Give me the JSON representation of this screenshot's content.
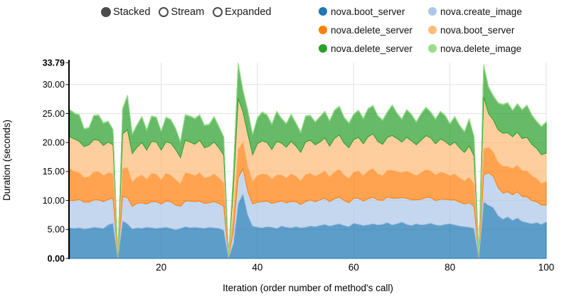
{
  "controls": {
    "radios": [
      {
        "label": "Stacked",
        "selected": true
      },
      {
        "label": "Stream",
        "selected": false
      },
      {
        "label": "Expanded",
        "selected": false
      }
    ]
  },
  "legend": {
    "items": [
      {
        "label": "nova.boot_server",
        "color": "#1f77b4"
      },
      {
        "label": "nova.create_image",
        "color": "#aec7e8"
      },
      {
        "label": "nova.delete_server",
        "color": "#ff7f0e"
      },
      {
        "label": "nova.boot_server",
        "color": "#ffbb78"
      },
      {
        "label": "nova.delete_server",
        "color": "#2ca02c"
      },
      {
        "label": "nova.delete_image",
        "color": "#98df8a"
      }
    ]
  },
  "chart_data": {
    "type": "area",
    "stacked": true,
    "xlabel": "Iteration (order number of method's call)",
    "ylabel": "Duration (seconds)",
    "xlim": [
      1,
      100
    ],
    "ylim": [
      0,
      33.79
    ],
    "grid": true,
    "legend_position": "top-right",
    "x_ticks": [
      {
        "value": 20,
        "label": "20"
      },
      {
        "value": 40,
        "label": "40"
      },
      {
        "value": 60,
        "label": "60"
      },
      {
        "value": 80,
        "label": "80"
      },
      {
        "value": 100,
        "label": "100"
      }
    ],
    "y_ticks": [
      {
        "value": 0,
        "label": "0.00",
        "bold": true
      },
      {
        "value": 5,
        "label": "5.00",
        "bold": false
      },
      {
        "value": 10,
        "label": "10.00",
        "bold": false
      },
      {
        "value": 15,
        "label": "15.00",
        "bold": false
      },
      {
        "value": 20,
        "label": "20.00",
        "bold": false
      },
      {
        "value": 25,
        "label": "25.00",
        "bold": false
      },
      {
        "value": 30,
        "label": "30.00",
        "bold": false
      },
      {
        "value": 33.79,
        "label": "33.79",
        "bold": true
      }
    ],
    "fill_opacity": 0.72,
    "series": [
      {
        "name": "nova.boot_server",
        "color": "#1f77b4",
        "values": [
          5.3,
          5.2,
          5.3,
          5.1,
          5.2,
          5.4,
          5.3,
          5.2,
          5.8,
          6.1,
          0.1,
          6.5,
          6.0,
          5.1,
          5.3,
          5.2,
          5.4,
          5.3,
          5.2,
          5.3,
          5.4,
          5.2,
          5.0,
          5.2,
          5.5,
          5.3,
          5.4,
          5.3,
          5.2,
          5.4,
          5.3,
          5.2,
          4.9,
          0.1,
          2.6,
          9.5,
          11.2,
          7.5,
          5.6,
          5.4,
          5.3,
          5.5,
          5.4,
          5.2,
          5.6,
          5.4,
          5.3,
          5.5,
          5.3,
          5.4,
          5.6,
          5.5,
          5.7,
          5.9,
          5.6,
          5.8,
          6.0,
          5.7,
          5.5,
          6.1,
          5.9,
          5.7,
          5.8,
          6.0,
          5.8,
          5.9,
          6.2,
          5.8,
          6.0,
          6.3,
          5.9,
          5.7,
          6.0,
          5.8,
          5.9,
          6.1,
          5.8,
          5.7,
          5.9,
          6.0,
          5.8,
          5.6,
          5.5,
          5.4,
          5.2,
          0.1,
          9.8,
          9.2,
          8.8,
          7.4,
          6.8,
          7.2,
          6.6,
          7.0,
          6.4,
          6.2,
          6.0,
          6.2,
          5.9,
          6.3
        ]
      },
      {
        "name": "nova.create_image",
        "color": "#aec7e8",
        "values": [
          4.7,
          4.8,
          4.9,
          4.6,
          4.5,
          4.7,
          4.8,
          4.6,
          4.4,
          4.3,
          0.1,
          4.2,
          4.5,
          3.9,
          4.2,
          4.4,
          4.0,
          4.5,
          4.6,
          4.1,
          4.5,
          4.6,
          4.2,
          3.8,
          4.4,
          4.6,
          4.4,
          4.6,
          4.3,
          4.2,
          4.5,
          4.3,
          4.1,
          0.1,
          2.2,
          4.4,
          4.3,
          4.1,
          3.8,
          4.3,
          4.5,
          4.4,
          4.1,
          4.5,
          4.3,
          4.2,
          4.5,
          4.3,
          4.0,
          4.4,
          4.5,
          4.3,
          4.4,
          4.5,
          4.2,
          4.5,
          4.6,
          4.3,
          4.1,
          4.3,
          4.5,
          4.2,
          4.5,
          4.6,
          4.3,
          4.1,
          4.4,
          4.6,
          4.4,
          4.2,
          4.5,
          4.4,
          4.1,
          4.4,
          4.6,
          4.4,
          4.2,
          4.5,
          4.3,
          4.1,
          4.3,
          4.1,
          3.9,
          4.2,
          3.8,
          0.1,
          4.6,
          5.6,
          5.4,
          4.8,
          4.5,
          4.3,
          4.4,
          4.5,
          4.3,
          4.4,
          4.0,
          3.6,
          3.3,
          2.9
        ]
      },
      {
        "name": "nova.delete_server",
        "color": "#ff7f0e",
        "values": [
          5.5,
          5.0,
          4.6,
          4.3,
          4.4,
          4.8,
          4.9,
          4.5,
          4.6,
          4.2,
          0.1,
          4.8,
          5.2,
          4.2,
          4.5,
          4.8,
          4.3,
          4.9,
          4.7,
          4.2,
          4.8,
          4.6,
          4.4,
          3.9,
          4.9,
          4.7,
          4.5,
          4.9,
          4.4,
          4.5,
          4.8,
          4.4,
          4.0,
          0.1,
          2.4,
          4.9,
          4.6,
          4.3,
          3.9,
          4.6,
          4.8,
          4.6,
          4.2,
          4.7,
          4.5,
          4.3,
          4.8,
          4.4,
          4.1,
          4.7,
          4.6,
          4.4,
          4.5,
          4.7,
          4.3,
          4.6,
          4.8,
          4.4,
          4.2,
          4.5,
          4.7,
          4.4,
          4.8,
          4.9,
          4.5,
          4.3,
          4.6,
          4.8,
          4.6,
          4.3,
          4.7,
          4.6,
          4.2,
          4.6,
          4.8,
          4.6,
          4.4,
          4.7,
          4.5,
          4.2,
          4.5,
          4.2,
          4.0,
          4.4,
          3.9,
          0.1,
          4.5,
          4.4,
          4.2,
          4.4,
          4.6,
          4.4,
          4.5,
          4.6,
          4.4,
          4.5,
          4.3,
          4.0,
          3.7,
          4.1
        ]
      },
      {
        "name": "nova.boot_server",
        "color": "#ffbb78",
        "values": [
          5.5,
          5.6,
          5.4,
          5.3,
          5.5,
          5.6,
          5.4,
          5.2,
          5.3,
          5.0,
          0.25,
          6.0,
          6.5,
          4.9,
          5.2,
          5.6,
          5.0,
          5.5,
          5.6,
          5.1,
          5.4,
          5.5,
          5.2,
          4.5,
          5.6,
          5.5,
          5.4,
          5.6,
          5.2,
          5.3,
          5.5,
          5.2,
          4.8,
          0.25,
          5.0,
          8.8,
          5.2,
          5.6,
          4.6,
          5.5,
          5.7,
          5.5,
          5.1,
          5.8,
          5.5,
          5.3,
          5.6,
          5.2,
          4.9,
          5.6,
          5.7,
          5.4,
          5.5,
          5.7,
          5.3,
          5.8,
          5.9,
          5.5,
          5.3,
          5.6,
          5.8,
          5.5,
          5.9,
          6.0,
          5.6,
          5.4,
          5.7,
          6.0,
          5.7,
          5.3,
          5.8,
          5.6,
          5.3,
          5.6,
          5.9,
          5.7,
          5.4,
          5.7,
          5.5,
          5.2,
          5.5,
          5.2,
          4.9,
          5.4,
          4.8,
          0.25,
          9.0,
          5.8,
          5.5,
          5.6,
          5.7,
          5.8,
          5.5,
          5.7,
          5.6,
          5.8,
          5.4,
          5.2,
          5.0,
          4.9
        ]
      },
      {
        "name": "nova.delete_server",
        "color": "#2ca02c",
        "values": [
          4.6,
          4.4,
          4.5,
          3.0,
          2.9,
          4.1,
          4.3,
          3.8,
          3.5,
          2.6,
          0.05,
          4.3,
          5.8,
          3.3,
          3.8,
          4.4,
          3.4,
          4.3,
          4.2,
          3.2,
          4.2,
          4.0,
          3.6,
          2.7,
          4.3,
          4.4,
          4.4,
          4.3,
          3.8,
          3.7,
          4.3,
          3.6,
          3.1,
          0.05,
          2.6,
          5.8,
          3.6,
          4.0,
          3.4,
          4.4,
          4.9,
          4.7,
          4.3,
          5.1,
          4.2,
          4.0,
          4.6,
          3.9,
          3.4,
          4.4,
          4.2,
          3.9,
          4.3,
          4.5,
          4.3,
          4.8,
          4.9,
          4.4,
          4.2,
          4.3,
          4.6,
          4.3,
          4.8,
          4.8,
          4.4,
          4.1,
          4.3,
          5.2,
          4.3,
          3.9,
          4.7,
          4.5,
          3.9,
          4.5,
          4.8,
          4.4,
          4.2,
          4.7,
          4.4,
          3.7,
          4.3,
          3.8,
          3.5,
          4.6,
          3.3,
          0.05,
          5.3,
          4.5,
          4.1,
          4.6,
          4.9,
          5.1,
          4.5,
          4.8,
          4.9,
          5.5,
          5.0,
          4.6,
          4.8,
          5.3
        ]
      },
      {
        "name": "nova.delete_image",
        "color": "#98df8a",
        "values": [
          0.12,
          0.12,
          0.12,
          0.12,
          0.12,
          0.12,
          0.12,
          0.12,
          0.12,
          0.12,
          0.03,
          0.15,
          0.2,
          0.12,
          0.12,
          0.12,
          0.12,
          0.12,
          0.12,
          0.12,
          0.12,
          0.12,
          0.12,
          0.12,
          0.12,
          0.12,
          0.12,
          0.12,
          0.12,
          0.12,
          0.12,
          0.12,
          0.12,
          0.03,
          0.1,
          0.4,
          0.15,
          0.12,
          0.12,
          0.12,
          0.12,
          0.12,
          0.12,
          0.12,
          0.12,
          0.12,
          0.12,
          0.12,
          0.12,
          0.12,
          0.12,
          0.12,
          0.12,
          0.12,
          0.12,
          0.12,
          0.12,
          0.12,
          0.12,
          0.12,
          0.12,
          0.12,
          0.12,
          0.12,
          0.12,
          0.12,
          0.12,
          0.12,
          0.12,
          0.12,
          0.12,
          0.12,
          0.12,
          0.12,
          0.12,
          0.12,
          0.12,
          0.12,
          0.12,
          0.12,
          0.12,
          0.12,
          0.12,
          0.12,
          0.12,
          0.03,
          0.35,
          0.2,
          0.12,
          0.12,
          0.12,
          0.12,
          0.12,
          0.12,
          0.12,
          0.12,
          0.12,
          0.12,
          0.12,
          0.12
        ]
      }
    ]
  }
}
